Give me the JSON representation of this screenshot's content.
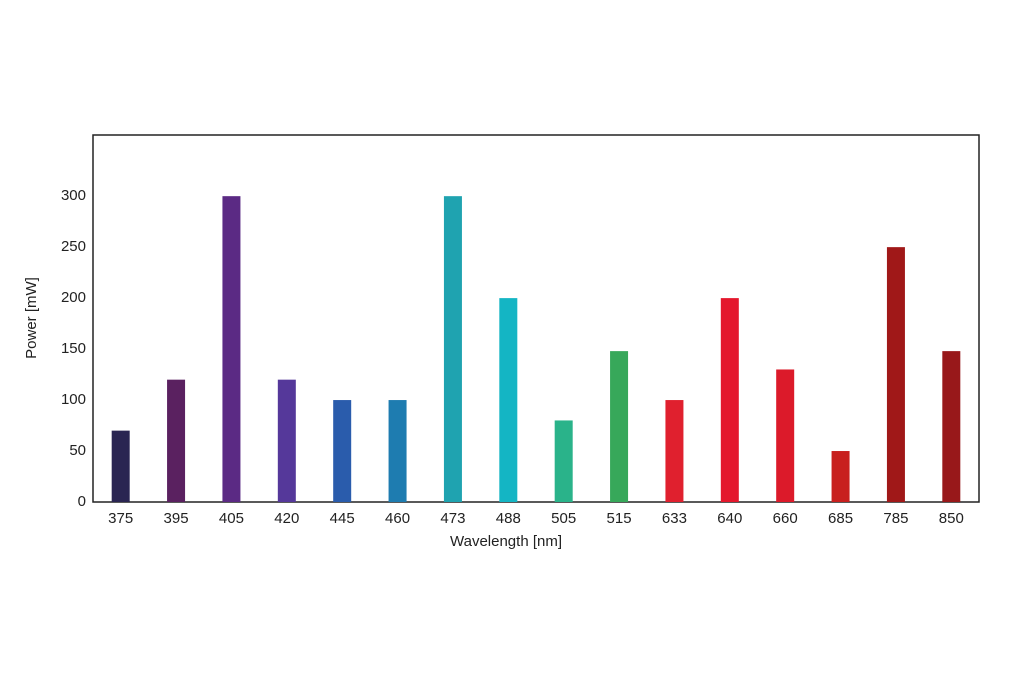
{
  "chart_data": {
    "type": "bar",
    "x_label": "Wavelength [nm]",
    "y_label": "Power [mW]",
    "categories": [
      "375",
      "395",
      "405",
      "420",
      "445",
      "460",
      "473",
      "488",
      "505",
      "515",
      "633",
      "640",
      "660",
      "685",
      "785",
      "850"
    ],
    "values": [
      70,
      120,
      300,
      120,
      100,
      100,
      300,
      200,
      80,
      148,
      100,
      200,
      130,
      50,
      250,
      148
    ],
    "colors": [
      "#2a2552",
      "#5a2160",
      "#5b2a84",
      "#55389a",
      "#2a5cac",
      "#1e7cb0",
      "#1fa3b0",
      "#14b5c4",
      "#2ab38a",
      "#37a85a",
      "#e0202e",
      "#e4172c",
      "#dc1a2a",
      "#c8201e",
      "#a01818",
      "#98181a"
    ],
    "ylim": [
      0,
      360
    ],
    "yticks": [
      0,
      50,
      100,
      150,
      200,
      250,
      300
    ],
    "grid": false
  }
}
